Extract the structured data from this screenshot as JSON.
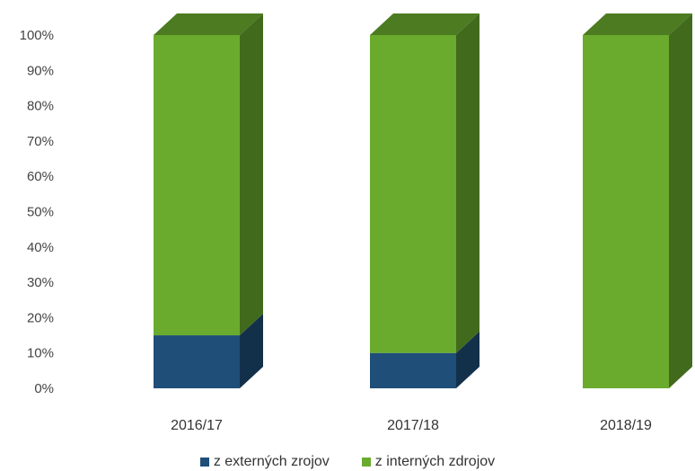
{
  "chart_data": {
    "type": "bar",
    "stacked": true,
    "percent": true,
    "three_d": true,
    "categories": [
      "2016/17",
      "2017/18",
      "2018/19"
    ],
    "series": [
      {
        "name": "z externých zrojov",
        "values": [
          15,
          10,
          0
        ],
        "color": "#1f4e79"
      },
      {
        "name": "z interných zdrojov",
        "values": [
          85,
          90,
          100
        ],
        "color": "#6aab2e"
      }
    ],
    "ylim": [
      0,
      100
    ],
    "yticks": [
      "0%",
      "10%",
      "20%",
      "30%",
      "40%",
      "50%",
      "60%",
      "70%",
      "80%",
      "90%",
      "100%"
    ],
    "grid": false,
    "legend_position": "bottom"
  }
}
